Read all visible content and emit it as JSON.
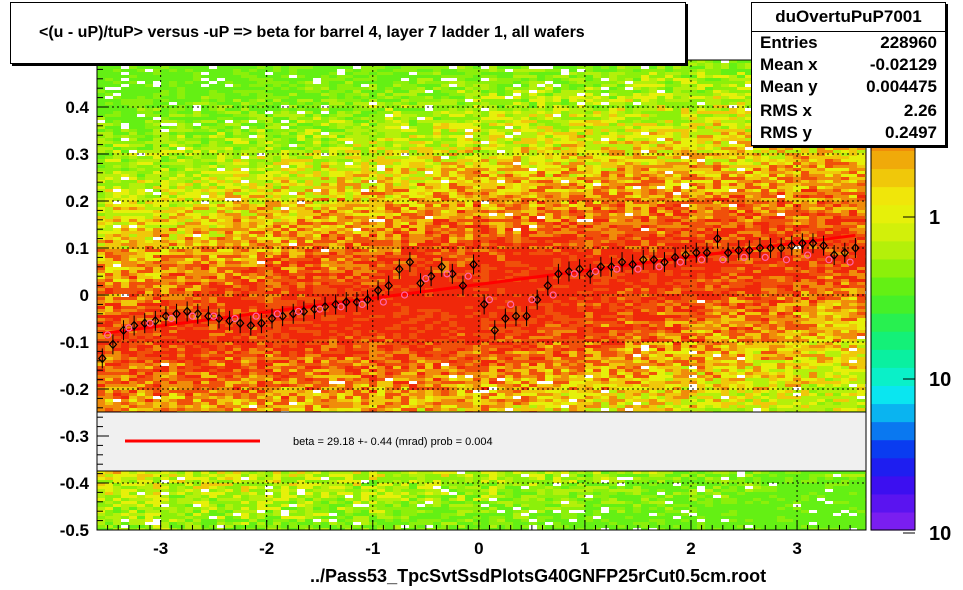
{
  "title": "<(u - uP)/tuP> versus  -uP => beta for barrel 4, layer 7 ladder 1, all wafers",
  "stats": {
    "name": "duOvertuPuP7001",
    "rows": [
      {
        "key": "Entries",
        "value": "228960"
      },
      {
        "key": "Mean x",
        "value": "-0.02129"
      },
      {
        "key": "Mean y",
        "value": "0.004475"
      },
      {
        "key": "RMS x",
        "value": "2.26"
      },
      {
        "key": "RMS y",
        "value": "0.2497"
      }
    ]
  },
  "footer": "../Pass53_TpcSvtSsdPlotsG40GNFP25rCut0.5cm.root",
  "fit_label": "beta =   29.18 +-  0.44 (mrad) prob = 0.004",
  "colorbar": {
    "tick_labels": [
      "1",
      "10",
      "10"
    ],
    "colors": [
      "#7a1ef0",
      "#5a14f0",
      "#3c0ff0",
      "#1e1ef0",
      "#0a3cf0",
      "#0a78f0",
      "#0ab4f0",
      "#0ae6f0",
      "#0af0c8",
      "#0af0a0",
      "#14f078",
      "#28f050",
      "#46f028",
      "#64f014",
      "#8cf00a",
      "#b4f00a",
      "#d2f00a",
      "#e6f00a",
      "#f0e60a",
      "#f0c80a",
      "#f0aa0a",
      "#f08c0a",
      "#f06e0a",
      "#f0500a",
      "#f0280a",
      "#f00a0a"
    ]
  },
  "chart_data": {
    "type": "scatter",
    "title": "<(u - uP)/tuP> versus  -uP => beta for barrel 4, layer 7 ladder 1, all wafers",
    "xlabel": "",
    "ylabel": "",
    "xlim": [
      -3.6,
      3.65
    ],
    "ylim": [
      -0.5,
      0.5
    ],
    "x_ticks": [
      -3,
      -2,
      -1,
      0,
      1,
      2,
      3
    ],
    "y_ticks": [
      -0.5,
      -0.4,
      -0.3,
      -0.2,
      -0.1,
      0,
      0.1,
      0.2,
      0.3,
      0.4
    ],
    "fit_line": {
      "x": [
        -3.55,
        3.55
      ],
      "y": [
        -0.082,
        0.127
      ],
      "color": "#ff0000"
    },
    "series": [
      {
        "marker": "open-diamond-black",
        "x": [
          -3.55,
          -3.45,
          -3.35,
          -3.25,
          -3.15,
          -3.05,
          -2.95,
          -2.85,
          -2.75,
          -2.65,
          -2.55,
          -2.45,
          -2.35,
          -2.25,
          -2.15,
          -2.05,
          -1.95,
          -1.85,
          -1.75,
          -1.65,
          -1.55,
          -1.45,
          -1.35,
          -1.25,
          -1.15,
          -1.05,
          -0.95,
          -0.85,
          -0.75,
          -0.65,
          -0.55,
          -0.45,
          -0.35,
          -0.25,
          -0.15,
          -0.05,
          0.05,
          0.15,
          0.25,
          0.35,
          0.45,
          0.55,
          0.65,
          0.75,
          0.85,
          0.95,
          1.05,
          1.15,
          1.25,
          1.35,
          1.45,
          1.55,
          1.65,
          1.75,
          1.85,
          1.95,
          2.05,
          2.15,
          2.25,
          2.35,
          2.45,
          2.55,
          2.65,
          2.75,
          2.85,
          2.95,
          3.05,
          3.15,
          3.25,
          3.35,
          3.45,
          3.55
        ],
        "y": [
          -0.135,
          -0.105,
          -0.075,
          -0.065,
          -0.06,
          -0.055,
          -0.045,
          -0.04,
          -0.035,
          -0.04,
          -0.045,
          -0.05,
          -0.055,
          -0.06,
          -0.065,
          -0.06,
          -0.05,
          -0.045,
          -0.04,
          -0.035,
          -0.03,
          -0.025,
          -0.02,
          -0.015,
          -0.015,
          -0.01,
          0.01,
          0.02,
          0.055,
          0.07,
          0.025,
          0.04,
          0.06,
          0.045,
          0.02,
          0.065,
          -0.02,
          -0.075,
          -0.05,
          -0.045,
          -0.045,
          -0.01,
          0.02,
          0.045,
          0.05,
          0.055,
          0.045,
          0.06,
          0.06,
          0.07,
          0.065,
          0.075,
          0.075,
          0.07,
          0.08,
          0.085,
          0.09,
          0.09,
          0.12,
          0.09,
          0.095,
          0.095,
          0.1,
          0.1,
          0.1,
          0.105,
          0.11,
          0.11,
          0.105,
          0.085,
          0.09,
          0.1
        ]
      },
      {
        "marker": "open-circle-pink",
        "x": [
          -3.5,
          -3.3,
          -3.1,
          -2.9,
          -2.7,
          -2.5,
          -2.3,
          -2.1,
          -1.9,
          -1.7,
          -1.5,
          -1.3,
          -1.1,
          -0.9,
          -0.7,
          -0.5,
          -0.3,
          -0.1,
          0.1,
          0.3,
          0.5,
          0.7,
          0.9,
          1.1,
          1.3,
          1.5,
          1.7,
          1.9,
          2.1,
          2.3,
          2.5,
          2.7,
          2.9,
          3.1,
          3.3,
          3.5
        ],
        "y": [
          -0.085,
          -0.07,
          -0.06,
          -0.05,
          -0.045,
          -0.045,
          -0.05,
          -0.045,
          -0.04,
          -0.035,
          -0.03,
          -0.025,
          -0.02,
          -0.015,
          0.0,
          0.035,
          0.045,
          0.04,
          -0.01,
          -0.02,
          -0.01,
          0.0,
          0.045,
          0.05,
          0.055,
          0.055,
          0.06,
          0.07,
          0.075,
          0.075,
          0.08,
          0.08,
          0.075,
          0.085,
          0.075,
          0.07
        ]
      }
    ]
  }
}
